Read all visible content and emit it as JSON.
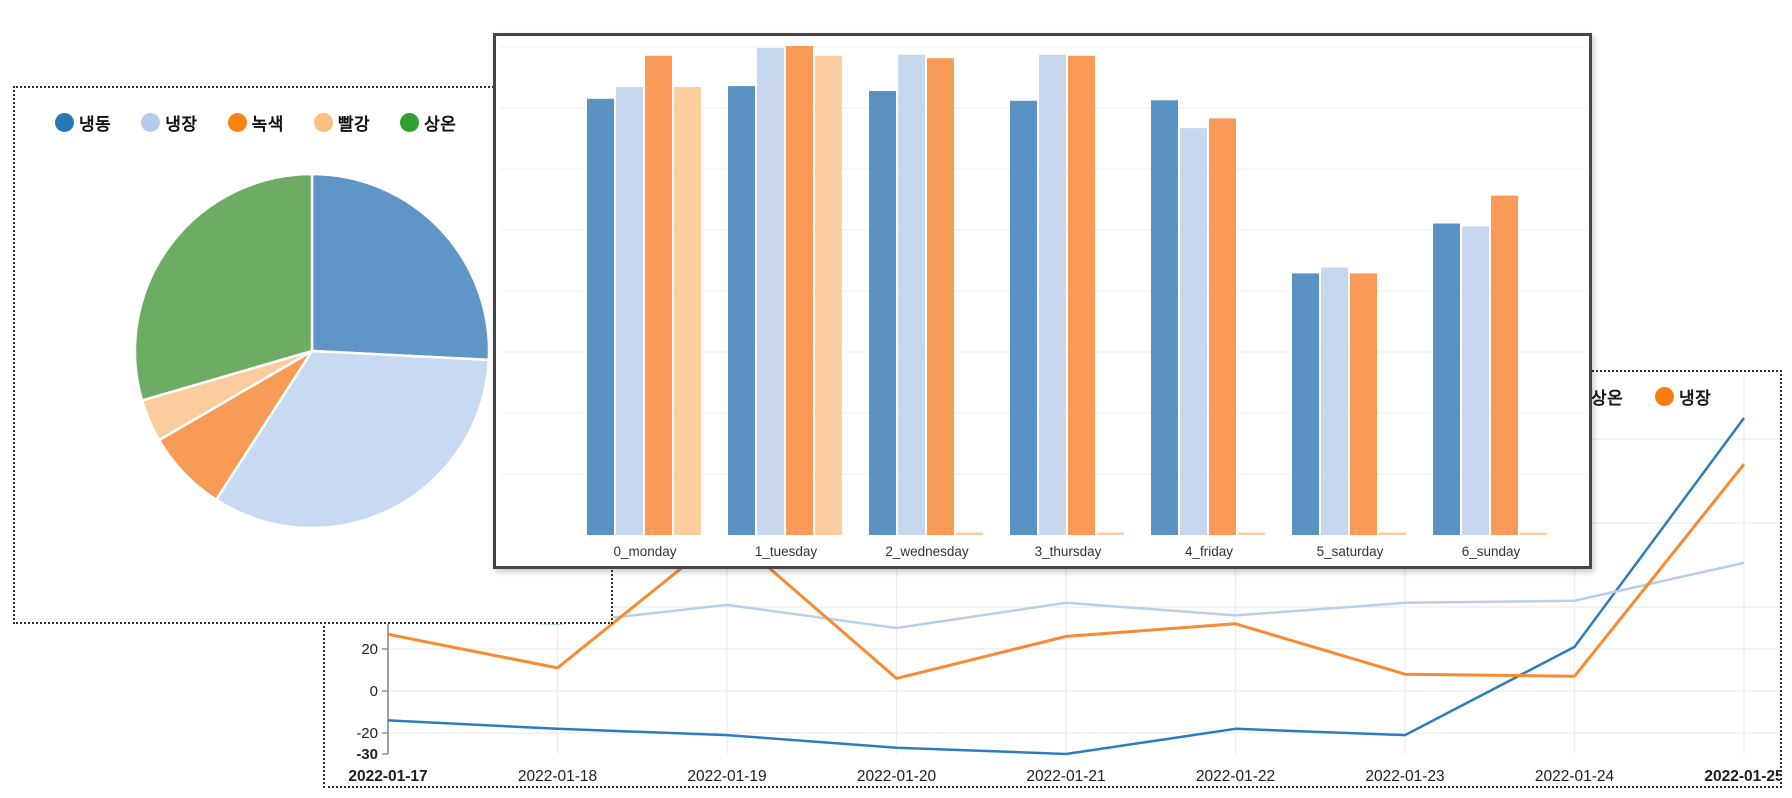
{
  "colors": {
    "legend_dots": [
      "#2878b5",
      "#b4cdee",
      "#fb8410",
      "#fcbf81",
      "#2fa02e"
    ],
    "pie_slices": [
      "#6095c7",
      "#c8daf1",
      "#f89b57",
      "#fbcd9e",
      "#6cad63"
    ],
    "bar_series": [
      "#5b92c4",
      "#c6d7ee",
      "#f99a58",
      "#fbcd9f"
    ],
    "line_series": [
      "#2d7dbb",
      "#b9cfe8",
      "#f78b33"
    ],
    "panel_border": "#2f2f2f",
    "axis_text": "#222222"
  },
  "chart_data": [
    {
      "id": "category-pie",
      "type": "pie",
      "legend": [
        "냉동",
        "냉장",
        "녹색",
        "빨강",
        "상온"
      ],
      "labels": [
        "냉동",
        "냉장",
        "녹색",
        "빨강",
        "상온"
      ],
      "values": [
        25.8,
        33.3,
        7.5,
        3.9,
        29.5
      ],
      "unit": "percent-of-circle",
      "legend_position": "top",
      "start_angle": "12-oclock-clockwise"
    },
    {
      "id": "weekday-bars",
      "type": "bar",
      "categories": [
        "0_monday",
        "1_tuesday",
        "2_wednesday",
        "3_thursday",
        "4_friday",
        "5_saturday",
        "6_sunday"
      ],
      "series": [
        {
          "name": "냉동",
          "values": [
            89.2,
            91.8,
            90.8,
            88.8,
            88.9,
            53.5,
            63.7
          ]
        },
        {
          "name": "냉장",
          "values": [
            91.6,
            99.6,
            98.2,
            98.2,
            83.2,
            54.7,
            63.1
          ]
        },
        {
          "name": "녹색",
          "values": [
            98.0,
            100.0,
            97.5,
            98.0,
            85.2,
            53.5,
            69.4
          ]
        },
        {
          "name": "빨강",
          "values": [
            91.6,
            98.0,
            0.5,
            0.5,
            0.5,
            0.5,
            0.5
          ]
        }
      ],
      "ylabel": "",
      "xlabel": "",
      "ylim": [
        0,
        102
      ],
      "grid": true,
      "y_axis_labels_visible": false
    },
    {
      "id": "daily-lines",
      "type": "line",
      "x": [
        "2022-01-17",
        "2022-01-18",
        "2022-01-19",
        "2022-01-20",
        "2022-01-21",
        "2022-01-22",
        "2022-01-23",
        "2022-01-24",
        "2022-01-25"
      ],
      "series": [
        {
          "name": "냉동",
          "values": [
            -14,
            -18,
            -21,
            -27,
            -30,
            -18,
            -21,
            21,
            130
          ]
        },
        {
          "name": "상온",
          "values": [
            35,
            32,
            41,
            30,
            42,
            36,
            42,
            43,
            61
          ]
        },
        {
          "name": "냉장",
          "values": [
            27,
            11,
            76,
            6,
            26,
            32,
            8,
            7,
            108
          ]
        }
      ],
      "yticks": [
        20,
        0,
        -20,
        -30
      ],
      "ytick_bold": [
        -30
      ],
      "xtick_bold": [
        "2022-01-17",
        "2022-01-25"
      ],
      "grid": true,
      "legend_visible_items": [
        {
          "label": "상온",
          "dot_color": "#2fa02e"
        },
        {
          "label": "냉장",
          "dot_color": "#fa7d0e"
        }
      ],
      "note": "lines partially hidden behind overlapping pie and bar panels"
    }
  ]
}
